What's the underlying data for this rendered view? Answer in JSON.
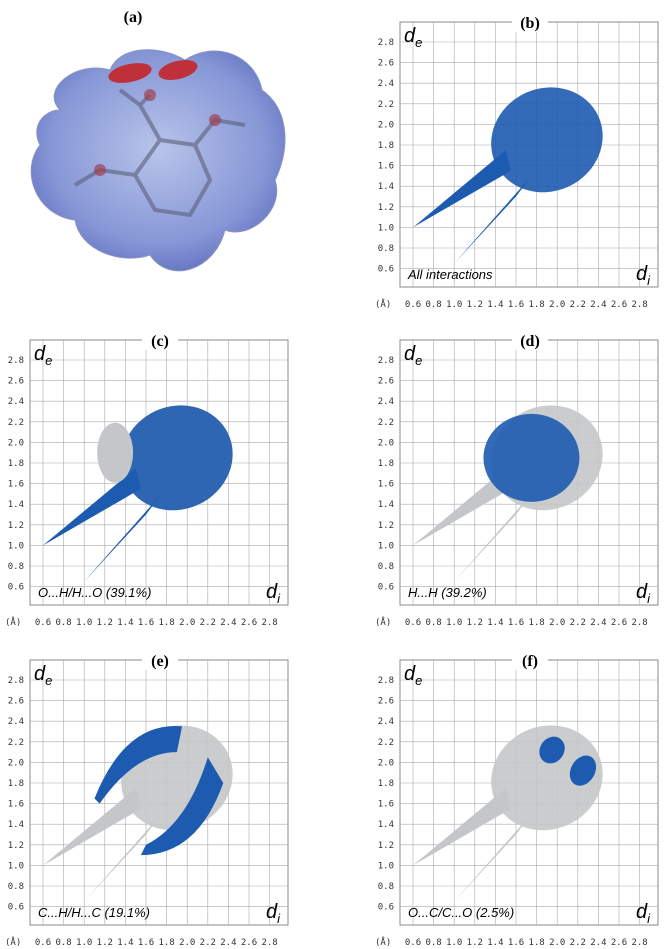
{
  "panels": [
    {
      "label": "(a)"
    },
    {
      "label": "(b)",
      "y_axis": "d",
      "y_sub": "e",
      "x_axis": "d",
      "x_sub": "i",
      "caption": "All interactions"
    },
    {
      "label": "(c)",
      "y_axis": "d",
      "y_sub": "e",
      "x_axis": "d",
      "x_sub": "i",
      "caption": "O...H/H...O (39.1%)"
    },
    {
      "label": "(d)",
      "y_axis": "d",
      "y_sub": "e",
      "x_axis": "d",
      "x_sub": "i",
      "caption": "H...H (39.2%)"
    },
    {
      "label": "(e)",
      "y_axis": "d",
      "y_sub": "e",
      "x_axis": "d",
      "x_sub": "i",
      "caption": "C...H/H...C (19.1%)"
    },
    {
      "label": "(f)",
      "y_axis": "d",
      "y_sub": "e",
      "x_axis": "d",
      "x_sub": "i",
      "caption": "O...C/C...O (2.5%)"
    }
  ],
  "x_unit": "(Å)",
  "yticks": [
    "2.8",
    "2.6",
    "2.4",
    "2.2",
    "2.0",
    "1.8",
    "1.6",
    "1.4",
    "1.2",
    "1.0",
    "0.8",
    "0.6"
  ],
  "xticks": [
    "0.6",
    "0.8",
    "1.0",
    "1.2",
    "1.4",
    "1.6",
    "1.8",
    "2.0",
    "2.2",
    "2.4",
    "2.6",
    "2.8"
  ]
}
